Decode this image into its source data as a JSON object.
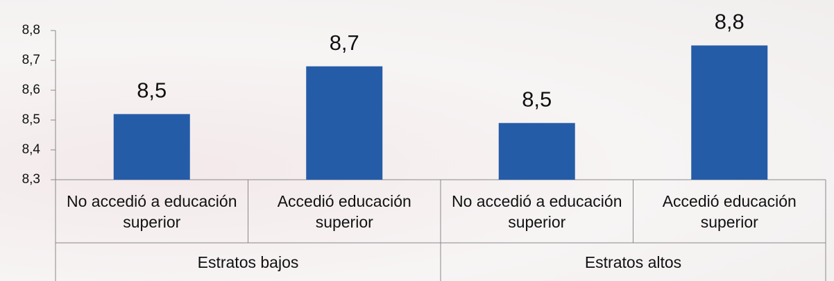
{
  "chart_data": {
    "type": "bar",
    "color": "#255ca8",
    "ylim": [
      8.3,
      8.8
    ],
    "yticks": [
      {
        "value": 8.3,
        "label": "8,3"
      },
      {
        "value": 8.4,
        "label": "8,4"
      },
      {
        "value": 8.5,
        "label": "8,5"
      },
      {
        "value": 8.6,
        "label": "8,6"
      },
      {
        "value": 8.7,
        "label": "8,7"
      },
      {
        "value": 8.8,
        "label": "8,8"
      }
    ],
    "groups": [
      {
        "name": "Estratos bajos",
        "categories": [
          "No accedió a educación superior",
          "Accedió educación superior"
        ],
        "values": [
          8.52,
          8.68
        ],
        "value_labels": [
          "8,5",
          "8,7"
        ]
      },
      {
        "name": "Estratos altos",
        "categories": [
          "No accedió a educación superior",
          "Accedió educación superior"
        ],
        "values": [
          8.49,
          8.75
        ],
        "value_labels": [
          "8,5",
          "8,8"
        ]
      }
    ]
  }
}
